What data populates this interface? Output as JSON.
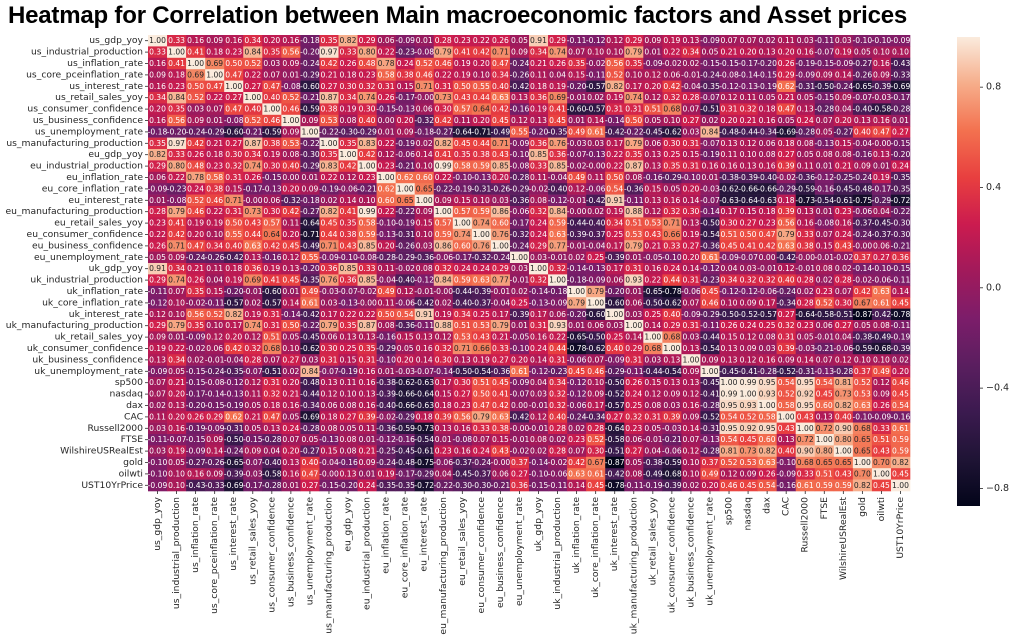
{
  "chart_data": {
    "type": "heatmap",
    "title": "Heatmap for Correlation between Main macroeconomic factors and Asset prices",
    "xlabel": "",
    "ylabel": "",
    "annotated": true,
    "value_format": "0.00",
    "colormap": "rocket",
    "color_range": [
      -0.87,
      1.0
    ],
    "colorbar": {
      "ticks": [
        0.8,
        0.4,
        0.0,
        -0.4,
        -0.8
      ],
      "tick_labels": [
        "0.8",
        "0.4",
        "0.0",
        "−0.4",
        "−0.8"
      ],
      "placement": "right"
    },
    "labels": [
      "us_gdp_yoy",
      "us_industrial_production",
      "us_inflation_rate",
      "us_core_pceinflation_rate",
      "us_interest_rate",
      "us_retail_sales_yoy",
      "us_consumer_confidence",
      "us_business_confidence",
      "us_unemployment_rate",
      "us_manufacturing_production",
      "eu_gdp_yoy",
      "eu_industrial_production",
      "eu_inflation_rate",
      "eu_core_inflation_rate",
      "eu_interest_rate",
      "eu_manufacturing_production",
      "eu_retail_sales_yoy",
      "eu_consumer_confidence",
      "eu_business_confidence",
      "eu_unemployment_rate",
      "uk_gdp_yoy",
      "uk_industrial_production",
      "uk_inflation_rate",
      "uk_core_inflation_rate",
      "uk_interest_rate",
      "uk_manufacturing_production",
      "uk_retail_sales_yoy",
      "uk_consumer_confidence",
      "uk_business_confidence",
      "uk_unemployment_rate",
      "sp500",
      "nasdaq",
      "dax",
      "CAC",
      "Russell2000",
      "FTSE",
      "WilshireUSRealEst",
      "gold",
      "oilwti",
      "UST10YrPrice"
    ],
    "lower_triangle": [
      [
        1.0
      ],
      [
        0.33,
        1.0
      ],
      [
        0.16,
        0.41,
        1.0
      ],
      [
        0.09,
        0.18,
        0.69,
        1.0
      ],
      [
        0.16,
        0.23,
        0.5,
        0.47,
        1.0
      ],
      [
        0.34,
        0.84,
        0.52,
        0.22,
        0.27,
        1.0
      ],
      [
        0.2,
        0.35,
        0.03,
        0.07,
        0.47,
        0.4,
        1.0
      ],
      [
        0.16,
        0.56,
        0.09,
        0.01,
        -0.08,
        0.52,
        0.46,
        1.0
      ],
      [
        -0.18,
        -0.2,
        -0.24,
        -0.29,
        -0.6,
        -0.21,
        -0.59,
        0.09,
        1.0
      ],
      [
        0.35,
        0.97,
        0.42,
        0.21,
        0.27,
        0.87,
        0.38,
        0.53,
        -0.22,
        1.0
      ],
      [
        0.82,
        0.33,
        0.26,
        0.18,
        0.3,
        0.34,
        0.19,
        0.08,
        -0.3,
        0.35,
        1.0
      ],
      [
        0.29,
        0.8,
        0.48,
        0.23,
        0.32,
        0.74,
        0.3,
        0.4,
        -0.29,
        0.83,
        0.42,
        1.0
      ],
      [
        0.06,
        0.22,
        0.78,
        0.58,
        0.31,
        0.26,
        -0.15,
        0.0,
        0.01,
        0.22,
        0.12,
        0.23,
        1.0
      ],
      [
        -0.09,
        -0.23,
        0.24,
        0.38,
        0.15,
        -0.17,
        -0.13,
        0.2,
        0.09,
        -0.19,
        -0.06,
        -0.21,
        0.62,
        1.0
      ],
      [
        0.01,
        -0.08,
        0.52,
        0.46,
        0.71,
        -0.0,
        0.06,
        -0.32,
        -0.18,
        0.02,
        0.14,
        0.1,
        0.6,
        0.65,
        1.0
      ],
      [
        0.28,
        0.79,
        0.46,
        0.22,
        0.31,
        0.73,
        0.3,
        0.42,
        -0.27,
        0.82,
        0.41,
        0.99,
        0.22,
        -0.22,
        0.09,
        1.0
      ],
      [
        0.23,
        0.41,
        0.19,
        0.19,
        0.5,
        0.43,
        0.57,
        0.11,
        -0.64,
        0.45,
        0.35,
        0.58,
        -0.1,
        -0.19,
        0.15,
        0.57,
        1.0
      ],
      [
        0.22,
        0.42,
        0.2,
        0.1,
        0.55,
        0.44,
        0.64,
        0.2,
        -0.71,
        0.44,
        0.38,
        0.59,
        -0.13,
        -0.31,
        0.1,
        0.59,
        0.74,
        1.0
      ],
      [
        0.26,
        0.71,
        0.47,
        0.34,
        0.4,
        0.63,
        0.42,
        0.45,
        -0.49,
        0.71,
        0.43,
        0.85,
        0.2,
        -0.26,
        0.03,
        0.86,
        0.6,
        0.76,
        1.0
      ],
      [
        0.05,
        0.09,
        -0.24,
        -0.26,
        -0.42,
        0.13,
        -0.16,
        0.12,
        0.55,
        -0.09,
        -0.1,
        -0.08,
        -0.28,
        -0.29,
        -0.36,
        -0.06,
        -0.17,
        -0.32,
        -0.24,
        1.0
      ],
      [
        0.91,
        0.34,
        0.21,
        0.11,
        0.18,
        0.36,
        0.19,
        0.13,
        -0.2,
        0.36,
        0.85,
        0.33,
        0.11,
        -0.02,
        0.08,
        0.32,
        0.24,
        0.24,
        0.29,
        0.03,
        1.0
      ],
      [
        0.29,
        0.74,
        0.26,
        0.04,
        0.19,
        0.69,
        0.41,
        0.45,
        -0.35,
        0.76,
        0.36,
        0.85,
        -0.04,
        -0.4,
        -0.12,
        0.84,
        0.59,
        0.63,
        0.77,
        -0.01,
        0.32,
        1.0
      ],
      [
        -0.11,
        0.07,
        0.35,
        0.15,
        -0.2,
        -0.01,
        -0.6,
        0.01,
        0.49,
        -0.03,
        -0.07,
        -0.02,
        0.49,
        0.12,
        -0.01,
        -0.0,
        -0.44,
        -0.39,
        -0.01,
        0.02,
        -0.14,
        -0.18,
        1.0
      ],
      [
        -0.12,
        0.1,
        -0.02,
        -0.11,
        -0.57,
        0.02,
        -0.57,
        0.14,
        0.61,
        0.03,
        -0.13,
        -0.0,
        0.11,
        -0.06,
        -0.42,
        0.02,
        -0.4,
        -0.37,
        -0.04,
        0.25,
        -0.13,
        -0.09,
        0.79,
        1.0
      ],
      [
        0.12,
        0.1,
        0.56,
        0.52,
        0.82,
        0.19,
        0.31,
        -0.14,
        -0.42,
        0.17,
        0.22,
        0.22,
        0.5,
        0.54,
        0.91,
        0.19,
        0.34,
        0.25,
        0.17,
        -0.39,
        0.17,
        0.06,
        -0.2,
        -0.6,
        1.0
      ],
      [
        0.29,
        0.79,
        0.35,
        0.1,
        0.17,
        0.74,
        0.31,
        0.5,
        -0.22,
        0.79,
        0.35,
        0.87,
        0.08,
        -0.36,
        -0.11,
        0.88,
        0.51,
        0.53,
        0.79,
        0.01,
        0.31,
        0.93,
        0.01,
        0.06,
        0.03,
        1.0
      ],
      [
        0.09,
        0.01,
        -0.09,
        0.12,
        0.2,
        0.12,
        0.51,
        0.05,
        -0.45,
        0.06,
        0.13,
        0.13,
        -0.16,
        0.15,
        0.13,
        0.12,
        0.53,
        0.43,
        0.21,
        -0.05,
        0.16,
        0.22,
        -0.65,
        -0.5,
        0.25,
        0.14,
        1.0
      ],
      [
        0.19,
        0.22,
        -0.02,
        0.06,
        0.42,
        0.32,
        0.68,
        0.1,
        -0.62,
        0.3,
        0.25,
        0.35,
        -0.29,
        0.05,
        0.16,
        0.32,
        0.71,
        0.66,
        0.33,
        -0.1,
        0.24,
        0.44,
        -0.78,
        -0.62,
        0.4,
        0.29,
        0.68,
        1.0
      ],
      [
        0.13,
        0.34,
        0.02,
        -0.01,
        -0.04,
        0.28,
        0.07,
        0.27,
        0.03,
        0.31,
        0.15,
        0.31,
        -0.1,
        0.2,
        0.14,
        0.3,
        0.13,
        0.19,
        0.27,
        0.2,
        0.14,
        0.31,
        -0.06,
        0.07,
        -0.09,
        0.31,
        0.03,
        0.13,
        1.0
      ],
      [
        -0.09,
        0.05,
        -0.15,
        -0.24,
        -0.35,
        -0.07,
        -0.51,
        0.02,
        0.84,
        -0.07,
        -0.19,
        0.16,
        0.01,
        -0.03,
        -0.07,
        -0.14,
        -0.5,
        -0.54,
        -0.36,
        0.61,
        -0.12,
        -0.23,
        0.45,
        0.46,
        -0.29,
        -0.11,
        -0.44,
        -0.54,
        0.09,
        1.0
      ],
      [
        0.07,
        0.21,
        -0.15,
        -0.08,
        -0.12,
        0.12,
        0.31,
        0.2,
        -0.48,
        0.13,
        0.11,
        0.16,
        -0.38,
        -0.62,
        -0.63,
        0.17,
        0.3,
        0.51,
        0.45,
        -0.09,
        0.04,
        0.34,
        -0.12,
        0.1,
        -0.5,
        0.26,
        0.15,
        0.13,
        0.13,
        -0.45,
        1.0
      ],
      [
        0.07,
        0.2,
        -0.17,
        -0.14,
        -0.13,
        0.11,
        0.32,
        0.21,
        -0.44,
        0.12,
        0.1,
        0.13,
        -0.39,
        -0.66,
        -0.64,
        0.15,
        0.27,
        0.5,
        0.41,
        -0.07,
        0.03,
        0.32,
        -0.12,
        0.09,
        -0.52,
        0.24,
        0.12,
        0.09,
        0.12,
        -0.41,
        0.99,
        1.0
      ],
      [
        0.02,
        0.13,
        -0.2,
        -0.15,
        -0.19,
        0.05,
        0.18,
        0.16,
        -0.34,
        0.06,
        0.08,
        0.16,
        -0.4,
        -0.66,
        -0.63,
        0.18,
        0.23,
        0.47,
        0.42,
        0.0,
        -0.01,
        0.32,
        -0.06,
        0.17,
        -0.57,
        0.25,
        0.08,
        0.03,
        0.16,
        -0.28,
        0.95,
        0.93,
        1.0
      ],
      [
        0.11,
        0.2,
        0.26,
        0.29,
        0.62,
        0.21,
        0.47,
        0.05,
        -0.69,
        0.18,
        0.27,
        0.39,
        -0.02,
        -0.29,
        0.18,
        0.39,
        0.56,
        0.79,
        0.63,
        -0.42,
        0.12,
        0.4,
        -0.24,
        -0.34,
        0.27,
        0.32,
        0.31,
        0.39,
        0.09,
        -0.52,
        0.54,
        0.52,
        0.58,
        1.0
      ],
      [
        0.03,
        0.16,
        -0.19,
        -0.09,
        -0.31,
        0.05,
        0.13,
        0.24,
        -0.28,
        0.08,
        0.05,
        0.11,
        -0.36,
        -0.59,
        -0.73,
        0.13,
        0.16,
        0.33,
        0.38,
        -0.0,
        -0.01,
        0.28,
        0.02,
        0.28,
        -0.64,
        0.23,
        0.05,
        -0.03,
        0.14,
        -0.31,
        0.95,
        0.92,
        0.95,
        0.43,
        1.0
      ],
      [
        -0.11,
        -0.07,
        -0.15,
        0.09,
        -0.5,
        -0.15,
        -0.28,
        0.07,
        0.05,
        -0.13,
        0.08,
        0.01,
        -0.12,
        -0.16,
        -0.54,
        0.01,
        -0.08,
        0.07,
        0.15,
        -0.01,
        0.08,
        0.02,
        0.23,
        0.52,
        -0.58,
        0.06,
        -0.01,
        -0.21,
        0.07,
        -0.13,
        0.54,
        0.45,
        0.6,
        0.13,
        0.72,
        1.0
      ],
      [
        0.03,
        0.19,
        -0.09,
        0.14,
        -0.24,
        0.09,
        0.04,
        0.2,
        -0.27,
        0.15,
        0.08,
        0.21,
        -0.25,
        -0.45,
        -0.61,
        0.23,
        0.16,
        0.24,
        0.43,
        -0.02,
        0.02,
        0.28,
        0.07,
        0.3,
        -0.51,
        0.27,
        0.04,
        -0.06,
        0.12,
        -0.28,
        0.81,
        0.73,
        0.82,
        0.4,
        0.9,
        0.8,
        1.0
      ],
      [
        -0.1,
        0.05,
        -0.27,
        -0.26,
        -0.65,
        -0.07,
        -0.4,
        0.13,
        0.4,
        -0.04,
        -0.16,
        0.09,
        -0.24,
        -0.48,
        -0.75,
        -0.06,
        -0.37,
        -0.24,
        -0.0,
        0.37,
        -0.14,
        -0.02,
        0.42,
        0.67,
        -0.87,
        0.05,
        -0.38,
        -0.59,
        0.1,
        0.37,
        0.52,
        0.53,
        0.63,
        -0.1,
        0.68,
        0.65,
        0.65,
        1.0
      ],
      [
        -0.1,
        0.1,
        0.16,
        0.09,
        -0.39,
        -0.03,
        -0.58,
        0.16,
        0.47,
        -0.0,
        0.13,
        0.01,
        0.19,
        -0.17,
        -0.29,
        0.04,
        -0.45,
        -0.37,
        0.06,
        0.27,
        -0.1,
        -0.06,
        0.63,
        0.61,
        -0.42,
        0.08,
        -0.49,
        -0.68,
        0.1,
        0.49,
        0.12,
        0.09,
        0.26,
        -0.09,
        0.33,
        0.51,
        0.43,
        0.7,
        1.0
      ],
      [
        -0.09,
        0.1,
        -0.43,
        -0.33,
        -0.69,
        -0.17,
        -0.28,
        0.01,
        0.27,
        -0.15,
        -0.2,
        0.24,
        -0.35,
        -0.35,
        -0.72,
        -0.22,
        -0.3,
        -0.3,
        -0.21,
        0.36,
        -0.15,
        -0.11,
        0.14,
        0.45,
        -0.78,
        -0.11,
        -0.19,
        -0.39,
        0.02,
        0.2,
        0.46,
        0.45,
        0.54,
        -0.16,
        0.61,
        0.59,
        0.59,
        0.82,
        0.45,
        1.0
      ]
    ]
  }
}
